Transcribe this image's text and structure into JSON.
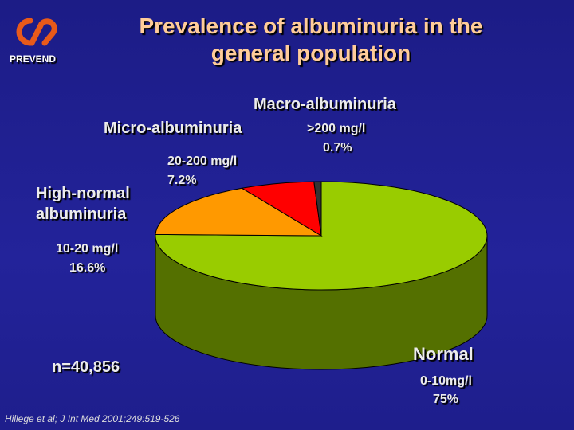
{
  "logo": "PREVEND",
  "chart_data": {
    "type": "pie",
    "title": "Prevalence of albuminuria in the general population",
    "categories": [
      "Normal",
      "High-normal albuminuria",
      "Micro-albuminuria",
      "Macro-albuminuria"
    ],
    "ranges": [
      "0-10mg/l",
      "10-20 mg/l",
      "20-200 mg/l",
      ">200 mg/l"
    ],
    "values": [
      75,
      16.6,
      7.2,
      0.7
    ],
    "value_labels": [
      "75%",
      "16.6%",
      "7.2%",
      "0.7%"
    ],
    "colors": [
      "#99cc00",
      "#ff9900",
      "#ff0000",
      "#333333"
    ],
    "annotations": [
      "n=40,856",
      "Hillege et al; J Int Med 2001;249:519-526"
    ]
  }
}
